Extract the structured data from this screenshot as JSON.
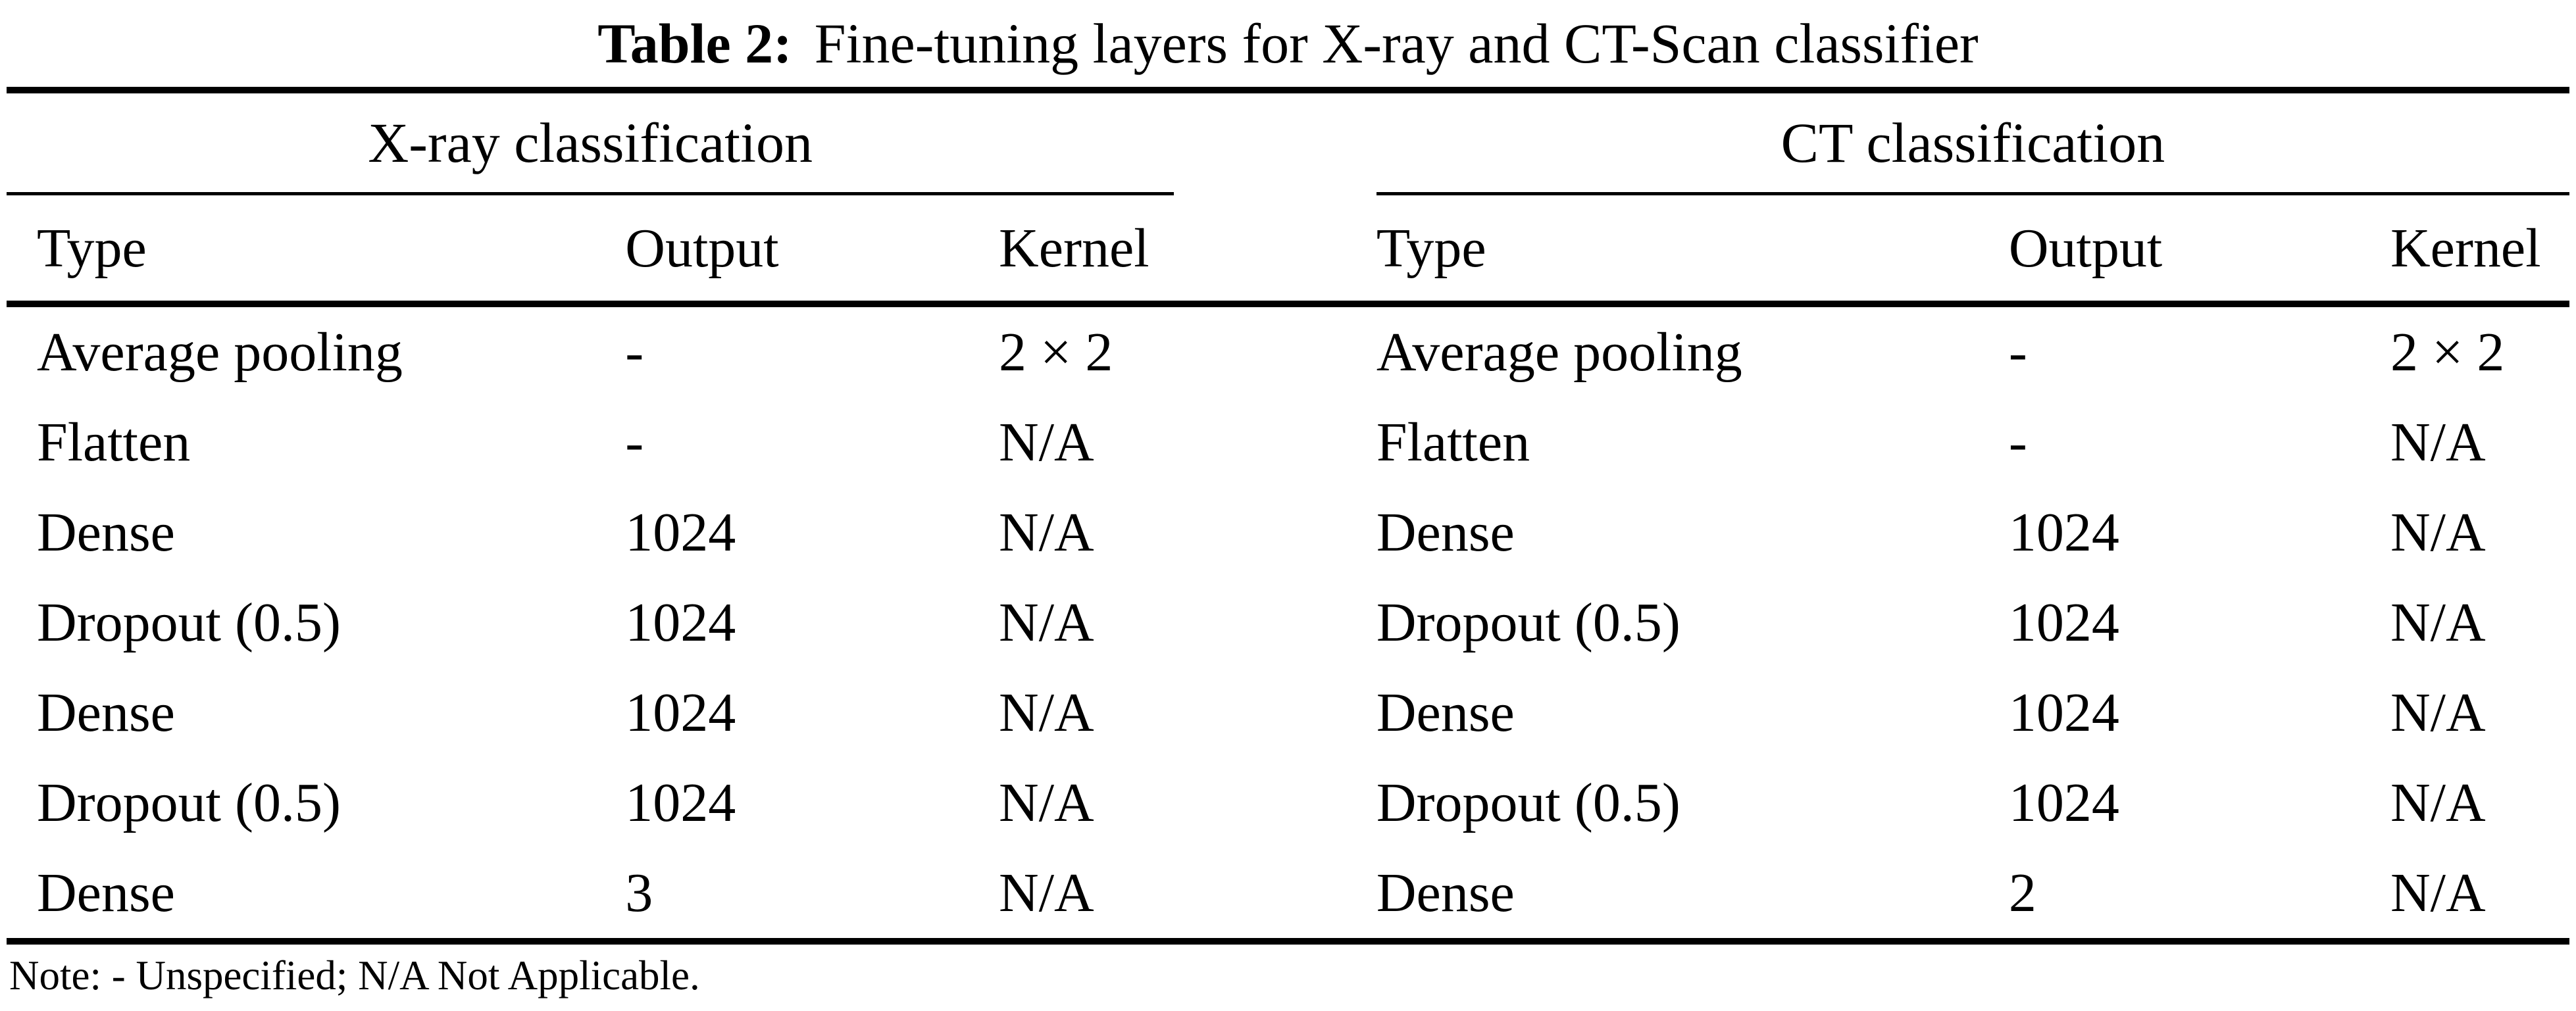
{
  "colors": {
    "text": "#000000",
    "background": "#ffffff",
    "rule": "#000000"
  },
  "title": {
    "label": "Table 2:",
    "text": "Fine-tuning layers for X-ray and CT-Scan classifier"
  },
  "groups": [
    {
      "header": "X-ray classification",
      "columns": [
        "Type",
        "Output",
        "Kernel"
      ],
      "rows": [
        {
          "type": "Average pooling",
          "output": "-",
          "kernel": "2 × 2"
        },
        {
          "type": "Flatten",
          "output": "-",
          "kernel": "N/A"
        },
        {
          "type": "Dense",
          "output": "1024",
          "kernel": "N/A"
        },
        {
          "type": "Dropout (0.5)",
          "output": "1024",
          "kernel": "N/A"
        },
        {
          "type": "Dense",
          "output": "1024",
          "kernel": "N/A"
        },
        {
          "type": "Dropout (0.5)",
          "output": "1024",
          "kernel": "N/A"
        },
        {
          "type": "Dense",
          "output": "3",
          "kernel": "N/A"
        }
      ]
    },
    {
      "header": "CT classification",
      "columns": [
        "Type",
        "Output",
        "Kernel"
      ],
      "rows": [
        {
          "type": "Average pooling",
          "output": "-",
          "kernel": "2 × 2"
        },
        {
          "type": "Flatten",
          "output": "-",
          "kernel": "N/A"
        },
        {
          "type": "Dense",
          "output": "1024",
          "kernel": "N/A"
        },
        {
          "type": "Dropout (0.5)",
          "output": "1024",
          "kernel": "N/A"
        },
        {
          "type": "Dense",
          "output": "1024",
          "kernel": "N/A"
        },
        {
          "type": "Dropout (0.5)",
          "output": "1024",
          "kernel": "N/A"
        },
        {
          "type": "Dense",
          "output": "2",
          "kernel": "N/A"
        }
      ]
    }
  ],
  "note": "Note: - Unspecified; N/A Not Applicable."
}
